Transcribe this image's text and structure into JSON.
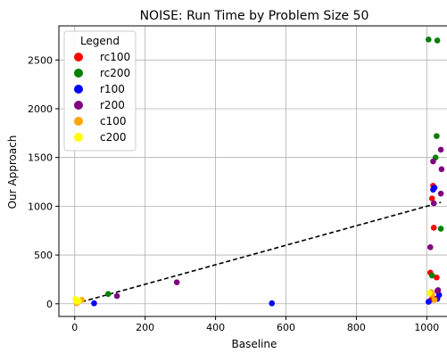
{
  "chart_data": {
    "type": "scatter",
    "title": "NOISE: Run Time by Problem Size 50",
    "xlabel": "Baseline",
    "ylabel": "Our Approach",
    "xlim": [
      -45,
      1060
    ],
    "ylim": [
      -130,
      2850
    ],
    "xticks": [
      0,
      200,
      400,
      600,
      800,
      1000
    ],
    "yticks": [
      0,
      500,
      1000,
      1500,
      2000,
      2500
    ],
    "grid": true,
    "legend": {
      "title": "Legend",
      "placement": "top-left"
    },
    "series": [
      {
        "name": "rc100",
        "color": "#ff0000",
        "x": [
          1010,
          1015,
          1018,
          1020,
          1028,
          1035,
          1012
        ],
        "y": [
          320,
          1080,
          1210,
          780,
          270,
          90,
          40
        ]
      },
      {
        "name": "rc200",
        "color": "#008000",
        "x": [
          1005,
          1030,
          1028,
          1025,
          1040,
          1015,
          95
        ],
        "y": [
          2710,
          2700,
          1720,
          1500,
          770,
          290,
          100
        ]
      },
      {
        "name": "r100",
        "color": "#0000ff",
        "x": [
          1018,
          1022,
          1005,
          1035,
          1030,
          560,
          55,
          5
        ],
        "y": [
          1170,
          1190,
          20,
          90,
          50,
          5,
          5,
          10
        ]
      },
      {
        "name": "r200",
        "color": "#800080",
        "x": [
          1040,
          1018,
          1042,
          1040,
          1020,
          1010,
          1030,
          290,
          120,
          1025,
          1032
        ],
        "y": [
          1580,
          1460,
          1380,
          1130,
          1030,
          580,
          130,
          220,
          80,
          50,
          140
        ]
      },
      {
        "name": "c100",
        "color": "#ffa500",
        "x": [
          1012,
          1015,
          1022,
          20,
          10,
          5
        ],
        "y": [
          120,
          90,
          40,
          40,
          20,
          5
        ]
      },
      {
        "name": "c200",
        "color": "#ffff00",
        "x": [
          1008,
          2,
          5,
          12
        ],
        "y": [
          110,
          50,
          20,
          30
        ]
      }
    ],
    "trend_line": {
      "style": "dashed",
      "color": "#000000",
      "x": [
        0,
        1040
      ],
      "y": [
        0,
        1040
      ]
    }
  }
}
